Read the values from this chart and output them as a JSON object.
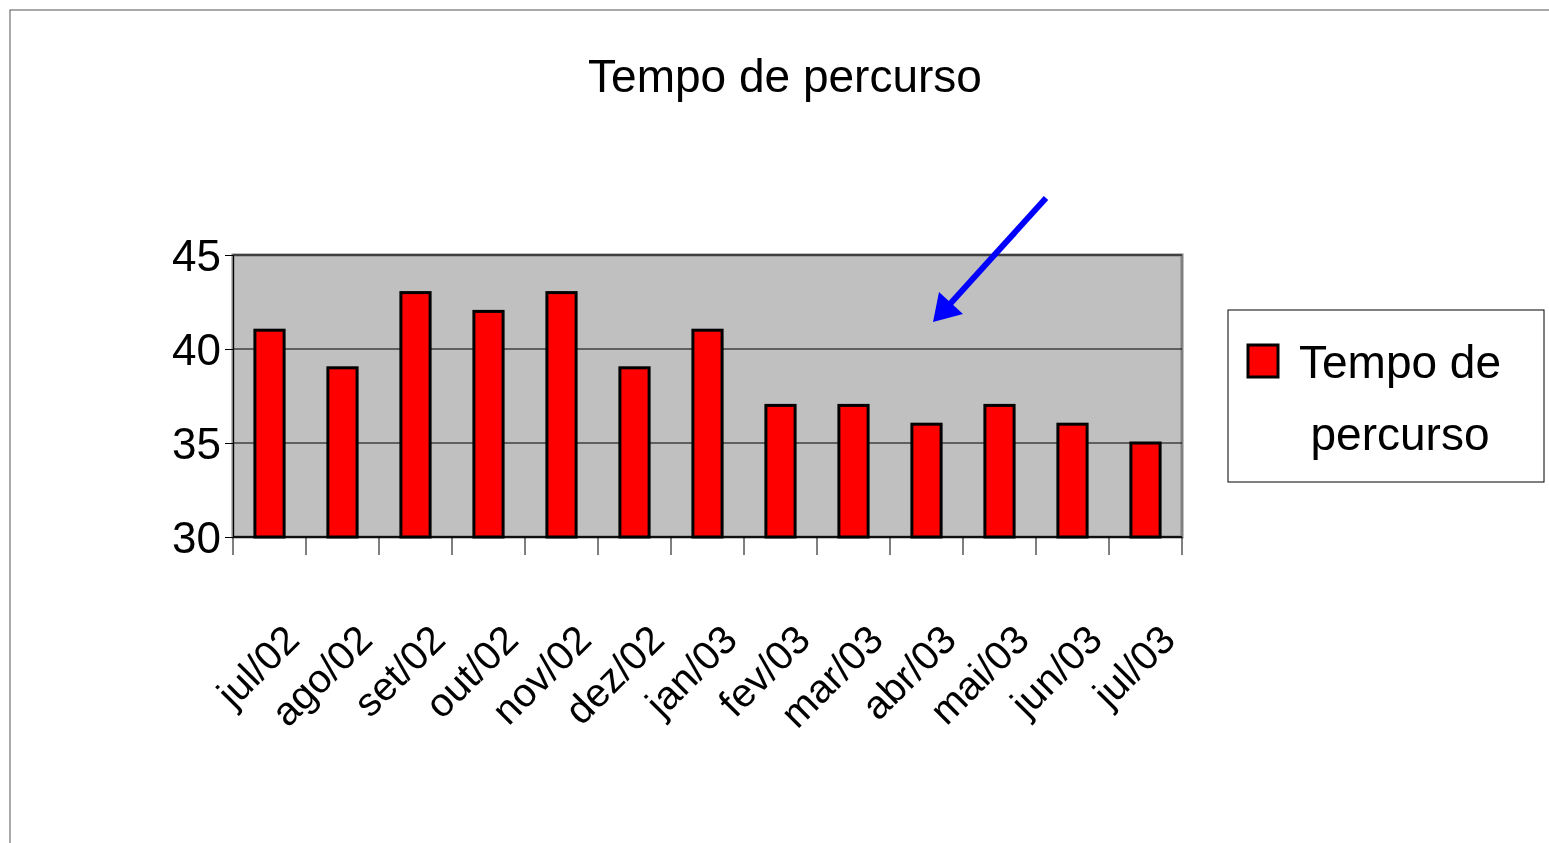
{
  "chart_data": {
    "type": "bar",
    "title": "Tempo de percurso",
    "categories": [
      "jul/02",
      "ago/02",
      "set/02",
      "out/02",
      "nov/02",
      "dez/02",
      "jan/03",
      "fev/03",
      "mar/03",
      "abr/03",
      "mai/03",
      "jun/03",
      "jul/03"
    ],
    "series": [
      {
        "name": "Tempo de percurso",
        "color": "#ff0000",
        "values": [
          41,
          39,
          43,
          42,
          43,
          39,
          41,
          37,
          37,
          36,
          37,
          36,
          35
        ]
      }
    ],
    "ylim": [
      30,
      45
    ],
    "yticks": [
      30,
      35,
      40,
      45
    ],
    "grid": "y",
    "legend": "right"
  }
}
